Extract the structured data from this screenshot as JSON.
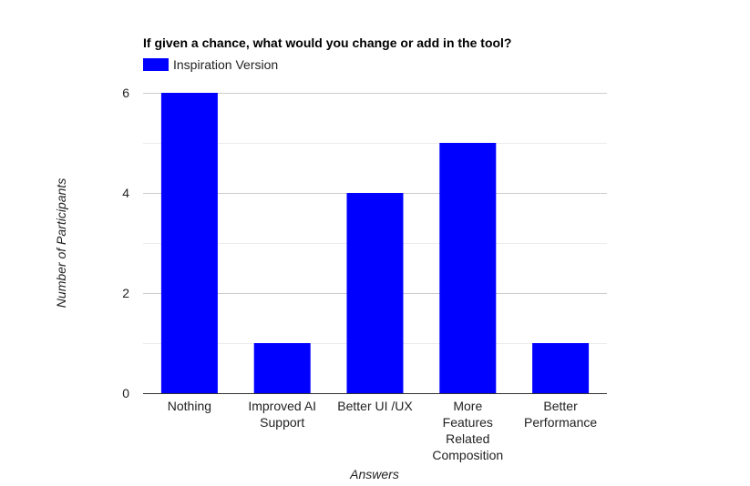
{
  "chart_data": {
    "type": "bar",
    "title": "If given a chance, what would you change or add in the tool?",
    "xlabel": "Answers",
    "ylabel": "Number of Participants",
    "categories": [
      [
        "Nothing"
      ],
      [
        "Improved AI",
        "Support"
      ],
      [
        "Better UI /UX"
      ],
      [
        "More",
        "Features",
        "Related",
        "Composition"
      ],
      [
        "Better",
        "Performance"
      ]
    ],
    "series": [
      {
        "name": "Inspiration Version",
        "color": "#0000ff",
        "values": [
          6,
          1,
          4,
          5,
          1
        ]
      }
    ],
    "ylim": [
      0,
      6
    ],
    "yticks": [
      "0",
      "2",
      "4",
      "6"
    ],
    "ytick_values": [
      0,
      2,
      4,
      6
    ],
    "minor_gridlines": [
      1,
      3,
      5
    ],
    "grid": true,
    "legend_position": "top-left"
  }
}
